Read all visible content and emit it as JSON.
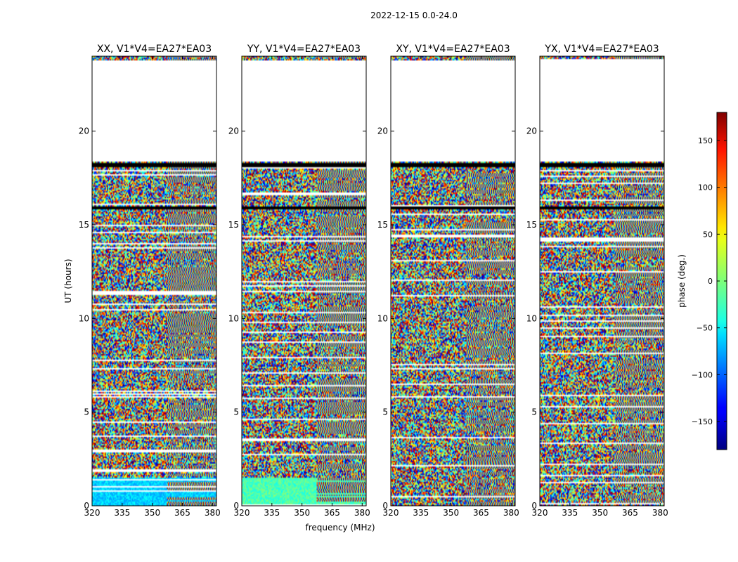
{
  "suptitle": "2022-12-15 0.0-24.0",
  "panel_titles": [
    "XX, V1*V4=EA27*EA03",
    "YY, V1*V4=EA27*EA03",
    "XY, V1*V4=EA27*EA03",
    "YX, V1*V4=EA27*EA03"
  ],
  "xlabel": "frequency (MHz)",
  "ylabel": "UT (hours)",
  "colorbar": {
    "label": "phase (deg.)",
    "range": [
      -180,
      180
    ],
    "ticks": [
      "150",
      "100",
      "50",
      "0",
      "−50",
      "−100",
      "−150"
    ],
    "tick_values": [
      150,
      100,
      50,
      0,
      -50,
      -100,
      -150
    ],
    "colormap": "jet"
  },
  "chart_data": {
    "type": "heatmap",
    "title": "2022-12-15 0.0-24.0",
    "xlabel": "frequency (MHz)",
    "ylabel": "UT (hours)",
    "xlim": [
      320,
      382
    ],
    "ylim": [
      0,
      24
    ],
    "x_ticks": [
      320,
      335,
      350,
      365,
      380
    ],
    "x_tick_labels": [
      "320",
      "335",
      "350",
      "365",
      "380"
    ],
    "y_ticks": [
      0,
      5,
      10,
      15,
      20
    ],
    "y_tick_labels": [
      "0",
      "5",
      "10",
      "15",
      "20"
    ],
    "value": "phase (deg.)",
    "value_range": [
      -180,
      180
    ],
    "panels": [
      {
        "name": "XX, V1*V4=EA27*EA03",
        "polarization": "XX"
      },
      {
        "name": "YY, V1*V4=EA27*EA03",
        "polarization": "YY"
      },
      {
        "name": "XY, V1*V4=EA27*EA03",
        "polarization": "XY"
      },
      {
        "name": "YX, V1*V4=EA27*EA03",
        "polarization": "YX"
      }
    ],
    "data_gaps_hours": [
      [
        18.4,
        23.8
      ]
    ],
    "flagged_rows_hours": [
      [
        18.1,
        18.3
      ],
      [
        15.8,
        16.0
      ]
    ]
  }
}
